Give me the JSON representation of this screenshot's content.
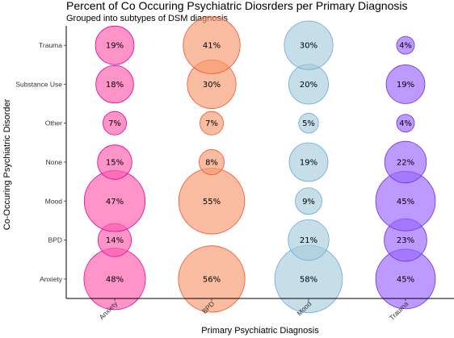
{
  "chart_data": {
    "type": "bubble",
    "title": "Percent of Co Occuring Psychiatric Diosrders per Primary Diagnosis",
    "subtitle": "Grouped into subtypes of DSM diagnosis",
    "xlabel": "Primary Psychiatric Diagnosis",
    "ylabel": "Co-Occuring Psychiatric Disorder",
    "x_categories": [
      "Anxiety",
      "BPD",
      "Mood",
      "Trauma"
    ],
    "y_categories": [
      "Anxiety",
      "BPD",
      "Mood",
      "None",
      "Other",
      "Substance Use",
      "Trauma"
    ],
    "colors": {
      "Anxiety": {
        "fill": "#ff5aac",
        "stroke": "#e0009a"
      },
      "BPD": {
        "fill": "#f79a6f",
        "stroke": "#f4512e"
      },
      "Mood": {
        "fill": "#a6ccdc",
        "stroke": "#6aa6dc"
      },
      "Trauma": {
        "fill": "#9a64ff",
        "stroke": "#6a2fd8"
      }
    },
    "series": [
      {
        "x": "Anxiety",
        "values": {
          "Trauma": 19,
          "Substance Use": 18,
          "Other": 7,
          "None": 15,
          "Mood": 47,
          "BPD": 14,
          "Anxiety": 48
        }
      },
      {
        "x": "BPD",
        "values": {
          "Trauma": 41,
          "Substance Use": 30,
          "Other": 7,
          "None": 8,
          "Mood": 55,
          "BPD": null,
          "Anxiety": 56
        }
      },
      {
        "x": "Mood",
        "values": {
          "Trauma": 30,
          "Substance Use": 20,
          "Other": 5,
          "None": 19,
          "Mood": 9,
          "BPD": 21,
          "Anxiety": 58
        }
      },
      {
        "x": "Trauma",
        "values": {
          "Trauma": 4,
          "Substance Use": 19,
          "Other": 4,
          "None": 22,
          "Mood": 45,
          "BPD": 23,
          "Anxiety": 45
        }
      }
    ],
    "value_suffix": "%",
    "grid": false,
    "legend": "none"
  }
}
